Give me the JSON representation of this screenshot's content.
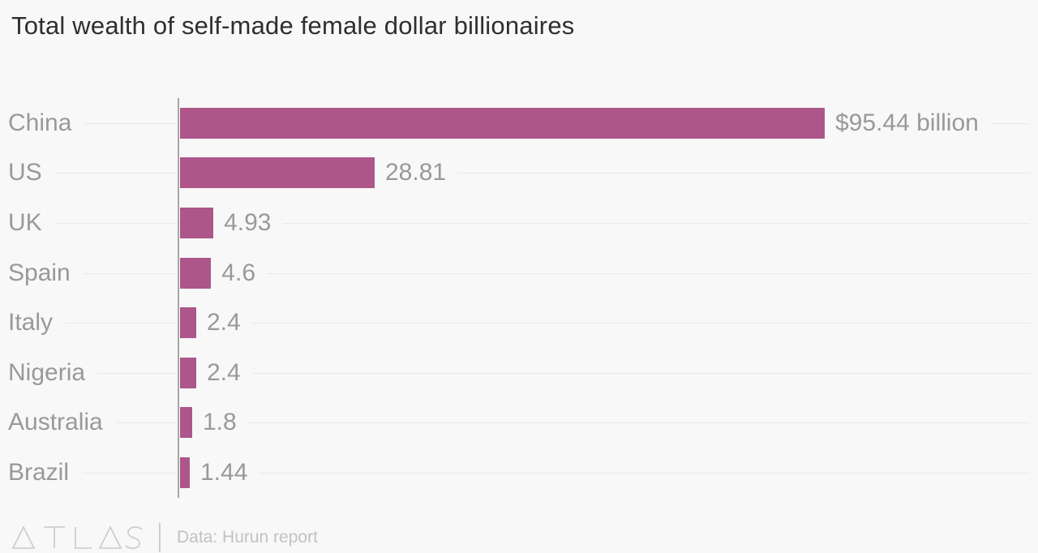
{
  "title": "Total wealth of self-made female dollar billionaires",
  "chart_data": {
    "type": "bar",
    "orientation": "horizontal",
    "title": "Total wealth of self-made female dollar billionaires",
    "categories": [
      "China",
      "US",
      "UK",
      "Spain",
      "Italy",
      "Nigeria",
      "Australia",
      "Brazil"
    ],
    "values": [
      95.44,
      28.81,
      4.93,
      4.6,
      2.4,
      2.4,
      1.8,
      1.44
    ],
    "value_labels": [
      "$95.44 billion",
      "28.81",
      "4.93",
      "4.6",
      "2.4",
      "2.4",
      "1.8",
      "1.44"
    ],
    "unit": "USD billions",
    "xlabel": "",
    "ylabel": "",
    "xlim": [
      0,
      95.44
    ],
    "grid": "horizontal-row-lines",
    "legend": "none"
  },
  "footer": {
    "brand": "ATLAS",
    "source": "Data: Hurun report"
  },
  "colors": {
    "bar": "#ac568a",
    "background": "#f8f8f8",
    "title_text": "#2f2f2f",
    "label_text": "#999999",
    "gridline": "#e9e9e9",
    "axis_line": "#a7a7a7",
    "footer_gray": "#c9c9c9"
  }
}
